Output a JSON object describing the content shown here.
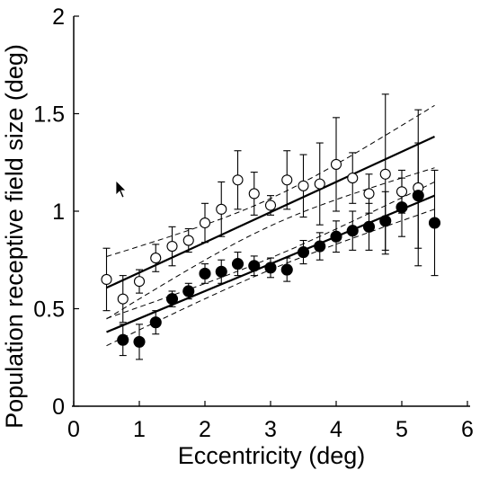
{
  "chart_data": {
    "type": "scatter",
    "xlabel": "Eccentricity (deg)",
    "ylabel": "Population receptive field size (deg)",
    "xlim": [
      0,
      6
    ],
    "ylim": [
      0,
      2
    ],
    "xticks": [
      "0",
      "1",
      "2",
      "3",
      "4",
      "5",
      "6"
    ],
    "yticks": [
      "0",
      "0.5",
      "1",
      "1.5",
      "2"
    ],
    "grid": false,
    "legend": "none",
    "series": [
      {
        "marker": "open-circle",
        "points": [
          {
            "x": 0.5,
            "y": 0.65,
            "err": 0.16
          },
          {
            "x": 0.75,
            "y": 0.55,
            "err": 0.12
          },
          {
            "x": 1.0,
            "y": 0.64,
            "err": 0.06
          },
          {
            "x": 1.25,
            "y": 0.76,
            "err": 0.07
          },
          {
            "x": 1.5,
            "y": 0.82,
            "err": 0.1
          },
          {
            "x": 1.75,
            "y": 0.85,
            "err": 0.06
          },
          {
            "x": 2.0,
            "y": 0.94,
            "err": 0.1
          },
          {
            "x": 2.25,
            "y": 1.01,
            "err": 0.14
          },
          {
            "x": 2.5,
            "y": 1.16,
            "err": 0.15
          },
          {
            "x": 2.75,
            "y": 1.09,
            "err": 0.11
          },
          {
            "x": 3.0,
            "y": 1.03,
            "err": 0.05
          },
          {
            "x": 3.25,
            "y": 1.16,
            "err": 0.15
          },
          {
            "x": 3.5,
            "y": 1.13,
            "err": 0.16
          },
          {
            "x": 3.75,
            "y": 1.14,
            "err": 0.21
          },
          {
            "x": 4.0,
            "y": 1.24,
            "err": 0.24
          },
          {
            "x": 4.25,
            "y": 1.17,
            "err": 0.13
          },
          {
            "x": 4.5,
            "y": 1.09,
            "err": 0.1
          },
          {
            "x": 4.75,
            "y": 1.19,
            "err": 0.41
          },
          {
            "x": 5.0,
            "y": 1.1,
            "err": 0.11
          },
          {
            "x": 5.25,
            "y": 1.12,
            "err": 0.4
          }
        ],
        "fit": {
          "slope": 0.155,
          "intercept": 0.53,
          "x_range": [
            0.5,
            5.5
          ]
        },
        "ci": {
          "half_width_at_ends": 0.16,
          "half_width_at_center": 0.07
        }
      },
      {
        "marker": "filled-circle",
        "points": [
          {
            "x": 0.75,
            "y": 0.34,
            "err": 0.08
          },
          {
            "x": 1.0,
            "y": 0.33,
            "err": 0.09
          },
          {
            "x": 1.25,
            "y": 0.43,
            "err": 0.06
          },
          {
            "x": 1.5,
            "y": 0.55,
            "err": 0.04
          },
          {
            "x": 1.75,
            "y": 0.59,
            "err": 0.04
          },
          {
            "x": 2.0,
            "y": 0.68,
            "err": 0.05
          },
          {
            "x": 2.25,
            "y": 0.69,
            "err": 0.06
          },
          {
            "x": 2.5,
            "y": 0.73,
            "err": 0.06
          },
          {
            "x": 2.75,
            "y": 0.72,
            "err": 0.05
          },
          {
            "x": 3.0,
            "y": 0.71,
            "err": 0.05
          },
          {
            "x": 3.25,
            "y": 0.7,
            "err": 0.06
          },
          {
            "x": 3.5,
            "y": 0.79,
            "err": 0.06
          },
          {
            "x": 3.75,
            "y": 0.82,
            "err": 0.07
          },
          {
            "x": 4.0,
            "y": 0.87,
            "err": 0.08
          },
          {
            "x": 4.25,
            "y": 0.9,
            "err": 0.1
          },
          {
            "x": 4.5,
            "y": 0.92,
            "err": 0.12
          },
          {
            "x": 4.75,
            "y": 0.95,
            "err": 0.15
          },
          {
            "x": 5.0,
            "y": 1.02,
            "err": 0.15
          },
          {
            "x": 5.25,
            "y": 1.08,
            "err": 0.27
          },
          {
            "x": 5.5,
            "y": 0.94,
            "err": 0.27
          }
        ],
        "fit": {
          "slope": 0.14,
          "intercept": 0.31,
          "x_range": [
            0.5,
            5.5
          ]
        },
        "ci": {
          "half_width_at_ends": 0.07,
          "half_width_at_center": 0.03
        }
      }
    ]
  }
}
